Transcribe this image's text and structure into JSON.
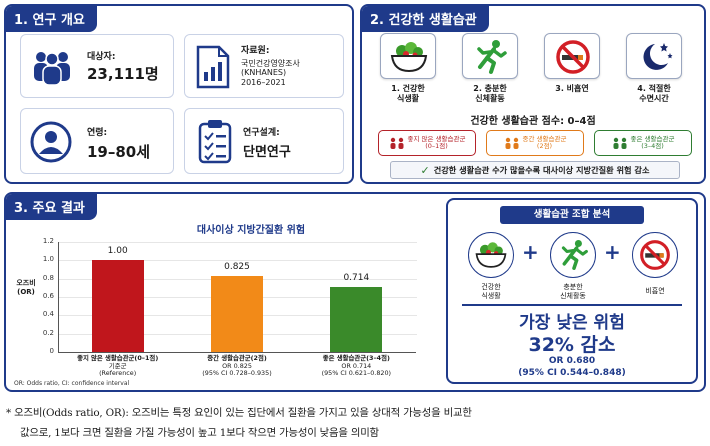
{
  "overview": {
    "title": "1. 연구 개요",
    "subjects_label": "대상자:",
    "subjects_value": "23,111명",
    "data_label": "자료원:",
    "data_line1": "국민건강영양조사",
    "data_line2": "(KNHANES)",
    "data_line3": "2016–2021",
    "age_label": "연령:",
    "age_value": "19–80세",
    "design_label": "연구설계:",
    "design_value": "단면연구"
  },
  "habits": {
    "title": "2. 건강한 생활습관",
    "items": [
      {
        "line1": "1. 건강한",
        "line2": "식생활"
      },
      {
        "line1": "2. 충분한",
        "line2": "신체활동"
      },
      {
        "line1": "3. 비흡연",
        "line2": ""
      },
      {
        "line1": "4. 적절한",
        "line2": "수면시간"
      }
    ],
    "score_label": "건강한 생활습관 점수: 0–4점",
    "groups": [
      {
        "line1": "좋지 않은 생활습관군",
        "line2": "(0–1점)",
        "color": "#b4232a"
      },
      {
        "line1": "중간 생활습관군",
        "line2": "(2점)",
        "color": "#e07a1a"
      },
      {
        "line1": "좋은 생활습관군",
        "line2": "(3–4점)",
        "color": "#2f7d32"
      }
    ],
    "check": "✓",
    "conclusion": "건강한 생활습관 수가 많을수록 대사이상 지방간질환 위험 감소"
  },
  "results": {
    "title": "3. 주요 결과",
    "footnote": "OR: Odds ratio, CI: confidence interval"
  },
  "chart_data": {
    "type": "bar",
    "title": "대사이상 지방간질환 위험",
    "ylabel": "오즈비 (OR)",
    "ylim": [
      0,
      1.2
    ],
    "yticks": [
      "0",
      "0.2",
      "0.4",
      "0.6",
      "0.8",
      "1.0",
      "1.2"
    ],
    "categories": [
      {
        "name": "좋지 않은 생활습관군(0–1점)",
        "sub1": "기준군",
        "sub2": "(Reference)"
      },
      {
        "name": "중간 생활습관군(2점)",
        "sub1": "OR 0.825",
        "sub2": "(95% CI 0.728–0.935)"
      },
      {
        "name": "좋은 생활습관군(3–4점)",
        "sub1": "OR 0.714",
        "sub2": "(95% CI 0.621–0.820)"
      }
    ],
    "values": [
      1.0,
      0.825,
      0.714
    ],
    "labels": [
      "1.00",
      "0.825",
      "0.714"
    ],
    "colors": [
      "#c0161c",
      "#f28a18",
      "#3a8a2a"
    ]
  },
  "combo": {
    "title": "생활습관 조합 분석",
    "item1_line1": "건강한",
    "item1_line2": "식생활",
    "item2_line1": "충분한",
    "item2_line2": "신체활동",
    "item3_line1": "비흡연",
    "plus": "+",
    "headline1": "가장 낮은 위험",
    "headline2": "32% 감소",
    "or_line": "OR 0.680",
    "ci_line": "(95% CI 0.544–0.848)"
  },
  "note": {
    "line1": "* 오즈비(Odds ratio, OR): 오즈비는 특정 요인이 있는 집단에서 질환을 가지고 있을 상대적 가능성을 비교한",
    "line2": "값으로, 1보다 크면 질환을 가질 가능성이 높고 1보다 작으면 가능성이 낮음을 의미함"
  },
  "icons": {
    "people": "people-icon",
    "document": "document-chart-icon",
    "person": "person-icon",
    "clipboard": "clipboard-icon",
    "salad": "salad-icon",
    "runner": "runner-icon",
    "no_smoking": "no-smoking-icon",
    "moon": "moon-icon"
  },
  "colors": {
    "navy": "#1f3a8a",
    "run_green": "#2f9e3a",
    "red": "#c0161c"
  }
}
